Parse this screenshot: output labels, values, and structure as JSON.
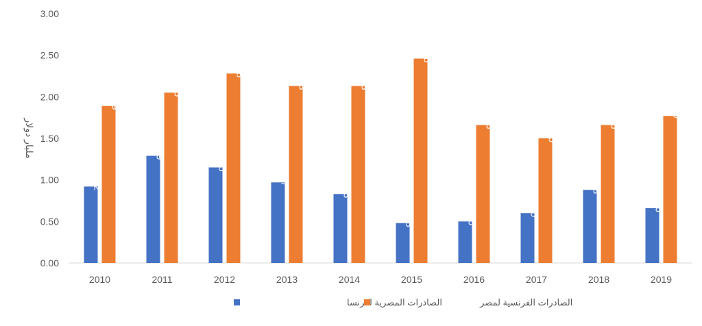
{
  "chart_data": {
    "type": "bar",
    "categories": [
      "2010",
      "2011",
      "2012",
      "2013",
      "2014",
      "2015",
      "2016",
      "2017",
      "2018",
      "2019"
    ],
    "series": [
      {
        "name": "الصادرات المصرية لفرنسا",
        "values": [
          0.92,
          1.29,
          1.15,
          0.97,
          0.83,
          0.48,
          0.5,
          0.6,
          0.88,
          0.66
        ],
        "labels": [
          "0.92",
          "1.29",
          "1.15",
          "0.97",
          "0.83",
          "0.48",
          "0.50",
          "0.60",
          "0.88",
          "0.66"
        ],
        "color": "#4472C4"
      },
      {
        "name": "الصادرات الفرنسية لمصر",
        "values": [
          1.89,
          2.05,
          2.28,
          2.13,
          2.13,
          2.46,
          1.66,
          1.5,
          1.66,
          1.77
        ],
        "labels": [
          "1.89",
          "2.05",
          "2.28",
          "2.13",
          "2.13",
          "2.46",
          "1.66",
          "1.50",
          "1.66",
          "1.77"
        ],
        "color": "#ED7D31"
      }
    ],
    "ylabel": "مليار دولار",
    "xlabel": "",
    "ylim": [
      0,
      3
    ],
    "yticks": [
      "0.00",
      "0.50",
      "1.00",
      "1.50",
      "2.00",
      "2.50",
      "3.00"
    ],
    "grid": false,
    "legend_position": "bottom"
  }
}
